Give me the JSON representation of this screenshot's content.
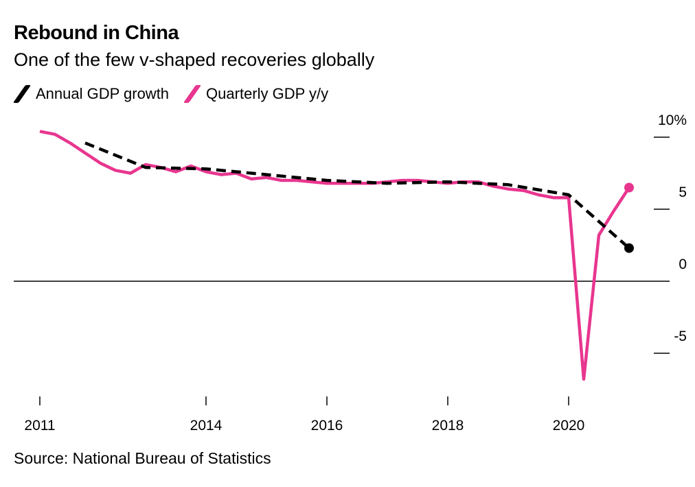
{
  "title": "Rebound in China",
  "subtitle": "One of the few v-shaped recoveries globally",
  "source": "Source: National Bureau of Statistics",
  "colors": {
    "annual": "#000000",
    "quarterly": "#e8368f"
  },
  "chart_data": {
    "type": "line",
    "title": "Rebound in China",
    "ylim": [
      -8,
      11
    ],
    "xlim": [
      2010.8,
      2021.5
    ],
    "yticks": [
      {
        "v": 10,
        "label": "10%"
      },
      {
        "v": 5,
        "label": "5"
      },
      {
        "v": 0,
        "label": "0"
      },
      {
        "v": -5,
        "label": "-5"
      }
    ],
    "xticks": [
      {
        "v": 2011.25,
        "label": "2011"
      },
      {
        "v": 2014,
        "label": "2014"
      },
      {
        "v": 2016,
        "label": "2016"
      },
      {
        "v": 2018,
        "label": "2018"
      },
      {
        "v": 2020,
        "label": "2020"
      }
    ],
    "legend": "top-left",
    "series": [
      {
        "name": "Annual GDP growth",
        "style": "dashed",
        "start": 2012,
        "step": 1,
        "values": [
          9.6,
          7.9,
          7.8,
          7.4,
          7.0,
          6.8,
          6.9,
          6.7,
          6.0,
          2.3
        ]
      },
      {
        "name": "Quarterly GDP y/y",
        "style": "solid",
        "start": 2011.25,
        "step": 0.25,
        "values": [
          10.4,
          10.2,
          9.6,
          8.9,
          8.2,
          7.7,
          7.5,
          8.1,
          7.9,
          7.6,
          8.0,
          7.6,
          7.4,
          7.5,
          7.1,
          7.2,
          7.0,
          7.0,
          6.9,
          6.8,
          6.8,
          6.8,
          6.8,
          6.9,
          7.0,
          7.0,
          6.9,
          6.8,
          6.9,
          6.9,
          6.6,
          6.4,
          6.3,
          6.0,
          5.8,
          5.8,
          -6.8,
          3.2,
          4.9,
          6.5
        ]
      }
    ]
  }
}
